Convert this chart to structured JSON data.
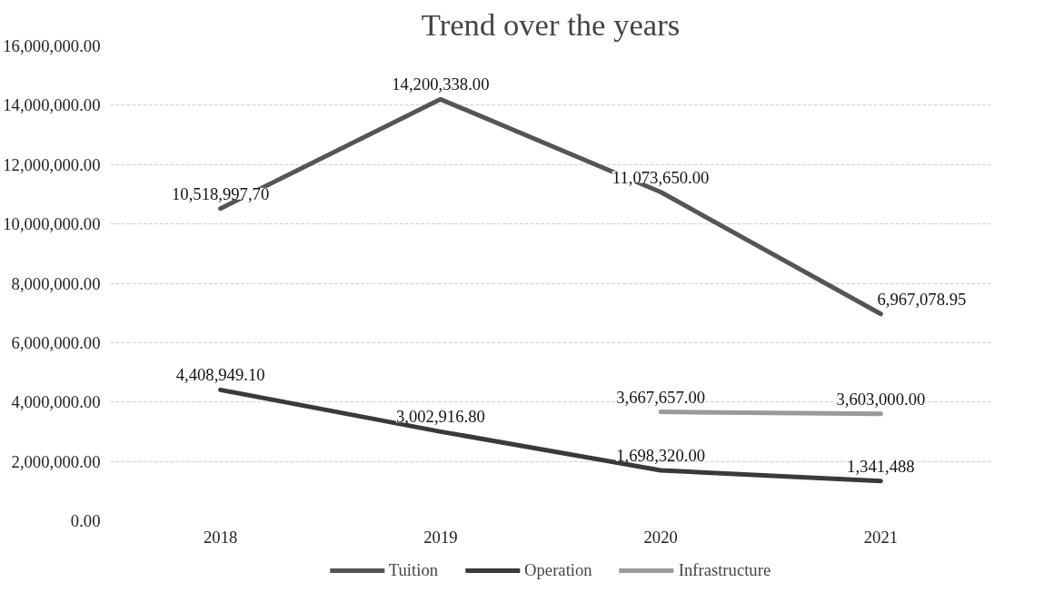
{
  "chart_data": {
    "type": "line",
    "title": "Trend over the years",
    "categories": [
      "2018",
      "2019",
      "2020",
      "2021"
    ],
    "series": [
      {
        "name": "Tuition",
        "color": "#555555",
        "values": [
          10518997.7,
          14200338,
          11073650,
          6967078.95
        ],
        "value_labels": [
          "10,518,997,70",
          "14,200,338.00",
          "11,073,650.00",
          "6,967,078.95"
        ]
      },
      {
        "name": "Operation",
        "color": "#3a3a3a",
        "values": [
          4408949.1,
          3002916.8,
          1698320,
          1341488
        ],
        "value_labels": [
          "4,408,949.10",
          "3,002,916.80",
          "1,698,320.00",
          "1,341,488"
        ]
      },
      {
        "name": "Infrastructure",
        "color": "#9a9a9a",
        "values": [
          null,
          null,
          3667657,
          3603000
        ],
        "value_labels": [
          null,
          null,
          "3,667,657.00",
          "3,603,000.00"
        ]
      }
    ],
    "ylim": [
      0,
      16000000
    ],
    "yticks": [
      {
        "value": 0,
        "label": "0.00"
      },
      {
        "value": 2000000,
        "label": "2,000,000.00"
      },
      {
        "value": 4000000,
        "label": "4,000,000.00"
      },
      {
        "value": 6000000,
        "label": "6,000,000.00"
      },
      {
        "value": 8000000,
        "label": "8,000,000.00"
      },
      {
        "value": 10000000,
        "label": "10,000,000.00"
      },
      {
        "value": 12000000,
        "label": "12,000,000.00"
      },
      {
        "value": 14000000,
        "label": "14,000,000.00"
      },
      {
        "value": 16000000,
        "label": "16,000,000.00"
      }
    ],
    "grid": "y",
    "legend": "bottom",
    "marker": "none",
    "line_style": "solid"
  }
}
